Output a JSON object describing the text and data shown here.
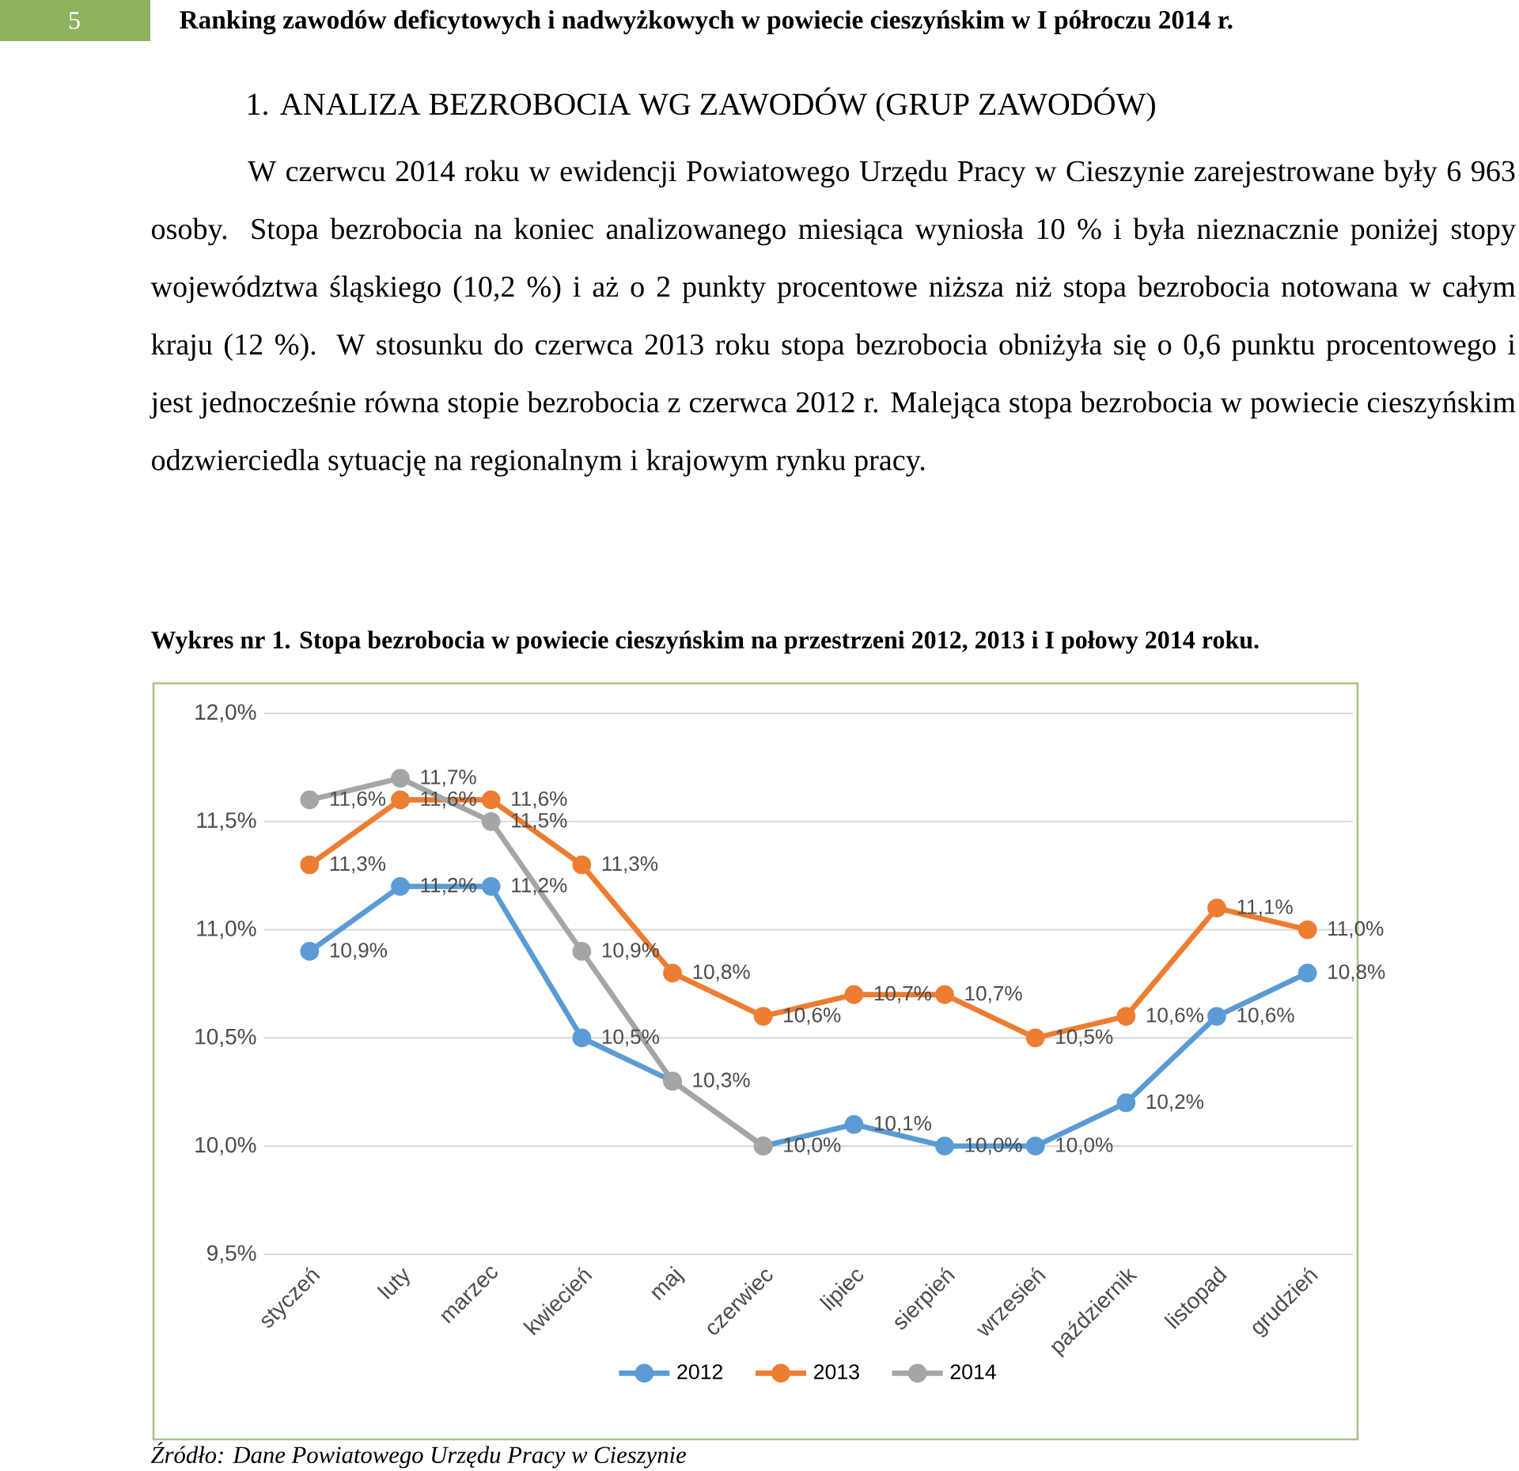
{
  "chart_data": {
    "type": "line",
    "title": "Wykres nr 1. Stopa bezrobocia w powiecie cieszyńskim na przestrzeni 2012, 2013 i I połowy 2014 roku.",
    "annotations": [
      "5",
      "Ranking zawodów deficytowych i nadwyżkowych w powiecie cieszyńskim w I półroczu 2014 r.",
      "1. ANALIZA BEZROBOCIA WG ZAWODÓW (GRUP ZAWODÓW)",
      "W czerwcu 2014 roku w ewidencji Powiatowego Urzędu Pracy w Cieszynie zarejestrowane były 6 963 osoby. Stopa bezrobocia na koniec analizowanego miesiąca wyniosła 10 % i była nieznacznie poniżej stopy województwa śląskiego (10,2 %) i aż o 2 punkty procentowe niższa niż stopa bezrobocia notowana w całym kraju (12 %). W stosunku do czerwca 2013 roku stopa bezrobocia obniżyła się o 0,6 punktu procentowego i jest jednocześnie równa stopie bezrobocia z czerwca 2012 r. Malejąca stopa bezrobocia w powiecie cieszyńskim odzwierciedla sytuację na regionalnym i krajowym rynku pracy.",
      "Źródło: Dane Powiatowego Urzędu Pracy w Cieszynie"
    ],
    "categories": [
      "styczeń",
      "luty",
      "marzec",
      "kwiecień",
      "maj",
      "czerwiec",
      "lipiec",
      "sierpień",
      "wrzesień",
      "październik",
      "listopad",
      "grudzień"
    ],
    "series": [
      {
        "name": "2012",
        "color": "#5b9bd5",
        "values": [
          10.9,
          11.2,
          11.2,
          10.5,
          10.3,
          10.0,
          10.1,
          10.0,
          10.0,
          10.2,
          10.6,
          10.8
        ],
        "value_labels": [
          "10,9%",
          "11,2%",
          "11,2%",
          "10,5%",
          null,
          null,
          "10,1%",
          "10,0%",
          "10,0%",
          "10,2%",
          "10,6%",
          "10,8%"
        ]
      },
      {
        "name": "2013",
        "color": "#ed7d31",
        "values": [
          11.3,
          11.6,
          11.6,
          11.3,
          10.8,
          10.6,
          10.7,
          10.7,
          10.5,
          10.6,
          11.1,
          11.0
        ],
        "value_labels": [
          "11,3%",
          "11,6%",
          "11,6%",
          "11,3%",
          "10,8%",
          "10,6%",
          "10,7%",
          "10,7%",
          "10,5%",
          "10,6%",
          "11,1%",
          "11,0%"
        ]
      },
      {
        "name": "2014",
        "color": "#a5a5a5",
        "values": [
          11.6,
          11.7,
          11.5,
          10.9,
          10.3,
          10.0,
          null,
          null,
          null,
          null,
          null,
          null
        ],
        "value_labels": [
          "11,6%",
          "11,7%",
          "11,5%",
          "10,9%",
          "10,3%",
          "10,0%",
          null,
          null,
          null,
          null,
          null,
          null
        ]
      }
    ],
    "ylim": [
      9.5,
      12.0
    ],
    "yticks": [
      {
        "value": 9.5,
        "label": "9,5%"
      },
      {
        "value": 10.0,
        "label": "10,0%"
      },
      {
        "value": 10.5,
        "label": "10,5%"
      },
      {
        "value": 11.0,
        "label": "11,0%"
      },
      {
        "value": 11.5,
        "label": "11,5%"
      },
      {
        "value": 12.0,
        "label": "12,0%"
      }
    ],
    "grid": "y",
    "legend": "bottom",
    "marker": "circle",
    "line_style": "solid"
  }
}
